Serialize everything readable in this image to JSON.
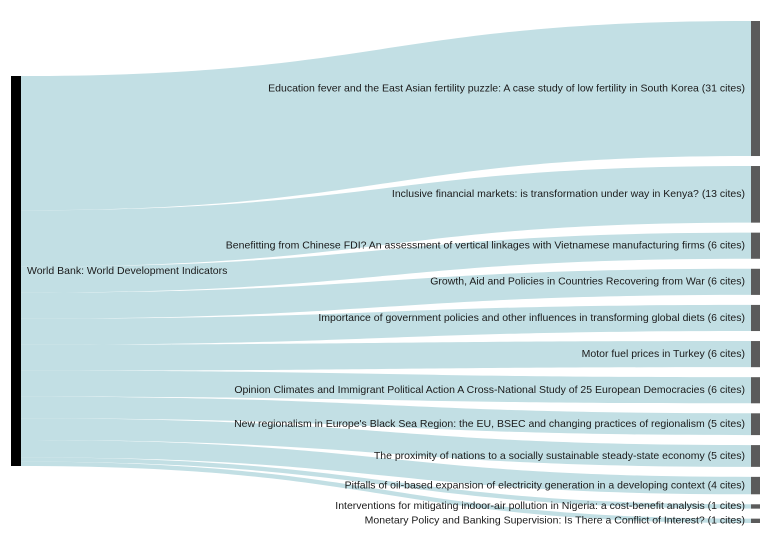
{
  "chart_data": {
    "type": "sankey",
    "source": {
      "name": "World Bank: World Development Indicators"
    },
    "targets": [
      {
        "name": "Education fever and the East Asian fertility puzzle: A case study of low fertility in South Korea (31 cites)",
        "value": 31
      },
      {
        "name": "Inclusive financial markets: is transformation under way in Kenya? (13 cites)",
        "value": 13
      },
      {
        "name": "Benefitting from Chinese FDI? An assessment of vertical linkages with Vietnamese manufacturing firms (6 cites)",
        "value": 6
      },
      {
        "name": "Growth, Aid and Policies in Countries Recovering from War (6 cites)",
        "value": 6
      },
      {
        "name": "Importance of government policies and other influences in transforming global diets (6 cites)",
        "value": 6
      },
      {
        "name": "Motor fuel prices in Turkey (6 cites)",
        "value": 6
      },
      {
        "name": "Opinion Climates and Immigrant Political Action A Cross-National Study of 25 European Democracies (6 cites)",
        "value": 6
      },
      {
        "name": "New regionalism in Europe's Black Sea Region: the EU, BSEC and changing practices of regionalism (5 cites)",
        "value": 5
      },
      {
        "name": "The proximity of nations to a socially sustainable steady-state economy (5 cites)",
        "value": 5
      },
      {
        "name": "Pitfalls of oil-based expansion of electricity generation in a developing context (4 cites)",
        "value": 4
      },
      {
        "name": "Interventions for mitigating indoor-air pollution in Nigeria: a cost-benefit analysis (1 cites)",
        "value": 1
      },
      {
        "name": "Monetary Policy and Banking Supervision: Is There a Conflict of Interest? (1 cites)",
        "value": 1
      }
    ],
    "colors": {
      "link": "#c2dfe4",
      "source_node": "#000000",
      "target_node": "#5b5b5b"
    }
  }
}
